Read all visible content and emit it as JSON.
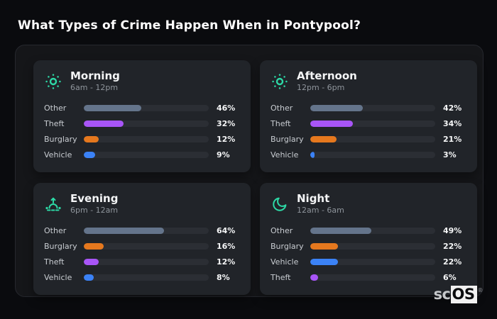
{
  "page": {
    "title": "What Types of Crime Happen When in Pontypool?"
  },
  "branding": {
    "prefix": "sc",
    "suffix": "OS",
    "registered_mark": "®"
  },
  "colors": {
    "accent_teal": "#2dd9a6",
    "category_other": "#64748b",
    "category_theft": "#a855f7",
    "category_burglary": "#e5781e",
    "category_vehicle": "#3b82f6"
  },
  "chart_data": [
    {
      "type": "bar",
      "orientation": "horizontal",
      "title": "Morning",
      "subtitle": "6am - 12pm",
      "icon": "sun-icon",
      "categories": [
        "Other",
        "Theft",
        "Burglary",
        "Vehicle"
      ],
      "values": [
        46,
        32,
        12,
        9
      ],
      "value_labels": [
        "46%",
        "32%",
        "12%",
        "9%"
      ],
      "bar_colors": [
        "#64748b",
        "#a855f7",
        "#e5781e",
        "#3b82f6"
      ],
      "xlim": [
        0,
        100
      ],
      "unit": "percent",
      "grid": false,
      "legend": false
    },
    {
      "type": "bar",
      "orientation": "horizontal",
      "title": "Afternoon",
      "subtitle": "12pm - 6pm",
      "icon": "sun-icon",
      "categories": [
        "Other",
        "Theft",
        "Burglary",
        "Vehicle"
      ],
      "values": [
        42,
        34,
        21,
        3
      ],
      "value_labels": [
        "42%",
        "34%",
        "21%",
        "3%"
      ],
      "bar_colors": [
        "#64748b",
        "#a855f7",
        "#e5781e",
        "#3b82f6"
      ],
      "xlim": [
        0,
        100
      ],
      "unit": "percent",
      "grid": false,
      "legend": false
    },
    {
      "type": "bar",
      "orientation": "horizontal",
      "title": "Evening",
      "subtitle": "6pm - 12am",
      "icon": "sunset-icon",
      "categories": [
        "Other",
        "Burglary",
        "Theft",
        "Vehicle"
      ],
      "values": [
        64,
        16,
        12,
        8
      ],
      "value_labels": [
        "64%",
        "16%",
        "12%",
        "8%"
      ],
      "bar_colors": [
        "#64748b",
        "#e5781e",
        "#a855f7",
        "#3b82f6"
      ],
      "xlim": [
        0,
        100
      ],
      "unit": "percent",
      "grid": false,
      "legend": false
    },
    {
      "type": "bar",
      "orientation": "horizontal",
      "title": "Night",
      "subtitle": "12am - 6am",
      "icon": "moon-icon",
      "categories": [
        "Other",
        "Burglary",
        "Vehicle",
        "Theft"
      ],
      "values": [
        49,
        22,
        22,
        6
      ],
      "value_labels": [
        "49%",
        "22%",
        "22%",
        "6%"
      ],
      "bar_colors": [
        "#64748b",
        "#e5781e",
        "#3b82f6",
        "#a855f7"
      ],
      "xlim": [
        0,
        100
      ],
      "unit": "percent",
      "grid": false,
      "legend": false
    }
  ]
}
